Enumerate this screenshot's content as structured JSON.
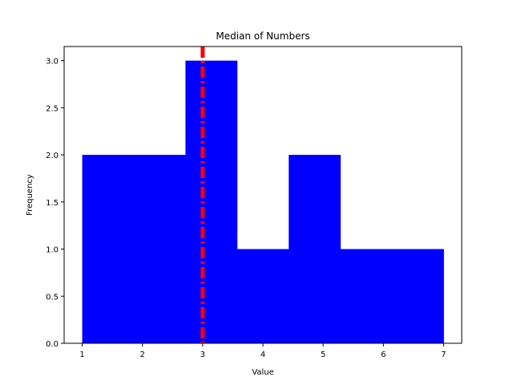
{
  "chart_data": {
    "type": "bar",
    "title": "Median of Numbers",
    "xlabel": "Value",
    "ylabel": "Frequency",
    "bins": [
      {
        "start": 1.0,
        "end": 1.8571,
        "count": 2
      },
      {
        "start": 1.8571,
        "end": 2.7143,
        "count": 2
      },
      {
        "start": 2.7143,
        "end": 3.5714,
        "count": 3
      },
      {
        "start": 3.5714,
        "end": 4.4286,
        "count": 1
      },
      {
        "start": 4.4286,
        "end": 5.2857,
        "count": 2
      },
      {
        "start": 5.2857,
        "end": 6.1429,
        "count": 1
      },
      {
        "start": 6.1429,
        "end": 7.0,
        "count": 1
      }
    ],
    "median": 3,
    "xlim": [
      0.7,
      7.3
    ],
    "ylim": [
      0,
      3.15
    ],
    "xticks": [
      1,
      2,
      3,
      4,
      5,
      6,
      7
    ],
    "xtick_labels": [
      "1",
      "2",
      "3",
      "4",
      "5",
      "6",
      "7"
    ],
    "yticks": [
      0,
      0.5,
      1.0,
      1.5,
      2.0,
      2.5,
      3.0
    ],
    "ytick_labels": [
      "0.0",
      "0.5",
      "1.0",
      "1.5",
      "2.0",
      "2.5",
      "3.0"
    ],
    "bar_color": "#0000ff",
    "median_line_color": "#ff0000",
    "median_line_style": "dashdot",
    "grid": false
  }
}
